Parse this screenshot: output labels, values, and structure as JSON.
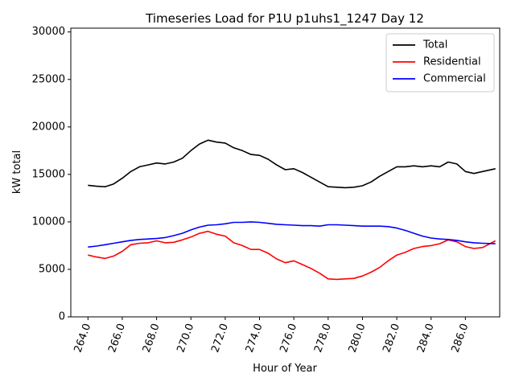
{
  "chart_data": {
    "type": "line",
    "title": "Timeseries Load for P1U p1uhs1_1247  Day 12",
    "xlabel": "Hour of Year",
    "ylabel": "kW total",
    "xlim": [
      263.0,
      288.0
    ],
    "ylim": [
      0,
      30400
    ],
    "x_ticks": [
      264,
      266,
      268,
      270,
      272,
      274,
      276,
      278,
      280,
      282,
      284,
      286
    ],
    "x_tick_labels": [
      "264.0",
      "266.0",
      "268.0",
      "270.0",
      "272.0",
      "274.0",
      "276.0",
      "278.0",
      "280.0",
      "282.0",
      "284.0",
      "286.0"
    ],
    "y_ticks": [
      0,
      5000,
      10000,
      15000,
      20000,
      25000,
      30000
    ],
    "y_tick_labels": [
      "0",
      "5000",
      "10000",
      "15000",
      "20000",
      "25000",
      "30000"
    ],
    "legend_position": "top-right",
    "x": [
      264.0,
      264.5,
      265.0,
      265.5,
      266.0,
      266.5,
      267.0,
      267.5,
      268.0,
      268.5,
      269.0,
      269.5,
      270.0,
      270.5,
      271.0,
      271.5,
      272.0,
      272.5,
      273.0,
      273.5,
      274.0,
      274.5,
      275.0,
      275.5,
      276.0,
      276.5,
      277.0,
      277.5,
      278.0,
      278.5,
      279.0,
      279.5,
      280.0,
      280.5,
      281.0,
      281.5,
      282.0,
      282.5,
      283.0,
      283.5,
      284.0,
      284.5,
      285.0,
      285.5,
      286.0,
      286.5,
      287.0,
      287.75
    ],
    "series": [
      {
        "name": "Total",
        "color": "#000000",
        "values": [
          13850,
          13750,
          13700,
          14000,
          14600,
          15300,
          15800,
          16000,
          16200,
          16100,
          16300,
          16700,
          17500,
          18200,
          18600,
          18400,
          18300,
          17800,
          17500,
          17100,
          17000,
          16600,
          16000,
          15500,
          15600,
          15200,
          14700,
          14200,
          13700,
          13650,
          13600,
          13650,
          13800,
          14200,
          14800,
          15300,
          15800,
          15800,
          15900,
          15800,
          15900,
          15800,
          16300,
          16100,
          15300,
          15100,
          15300,
          15600
        ]
      },
      {
        "name": "Residential",
        "color": "#ff0000",
        "values": [
          6500,
          6300,
          6150,
          6400,
          6900,
          7600,
          7750,
          7800,
          8000,
          7800,
          7850,
          8100,
          8400,
          8800,
          9000,
          8700,
          8500,
          7800,
          7500,
          7100,
          7100,
          6700,
          6100,
          5700,
          5900,
          5500,
          5100,
          4600,
          4000,
          3950,
          4000,
          4050,
          4300,
          4700,
          5200,
          5900,
          6500,
          6800,
          7200,
          7400,
          7500,
          7700,
          8100,
          7900,
          7400,
          7200,
          7300,
          8000
        ]
      },
      {
        "name": "Commercial",
        "color": "#0000ff",
        "values": [
          7350,
          7450,
          7600,
          7750,
          7900,
          8050,
          8150,
          8200,
          8250,
          8350,
          8550,
          8800,
          9150,
          9450,
          9650,
          9700,
          9800,
          9950,
          9950,
          10000,
          9950,
          9850,
          9750,
          9700,
          9650,
          9600,
          9600,
          9550,
          9700,
          9700,
          9650,
          9600,
          9550,
          9550,
          9550,
          9500,
          9350,
          9100,
          8800,
          8500,
          8300,
          8200,
          8150,
          8050,
          7900,
          7800,
          7750,
          7700
        ]
      }
    ]
  }
}
